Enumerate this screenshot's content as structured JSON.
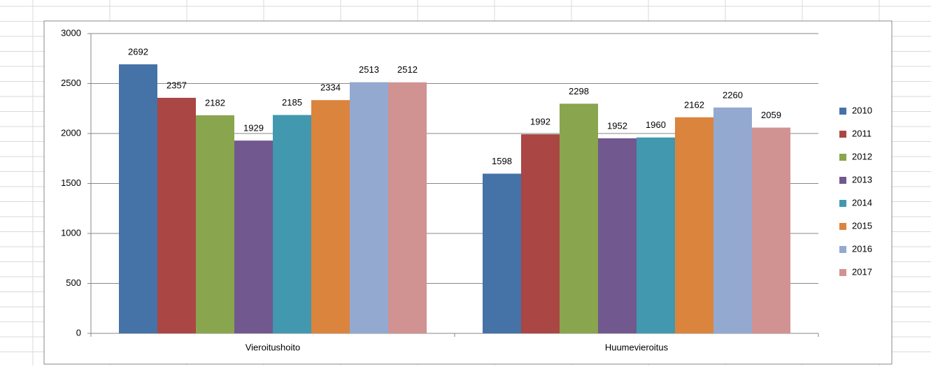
{
  "chart_data": {
    "type": "bar",
    "categories": [
      "Vieroitushoito",
      "Huumevieroitus"
    ],
    "series": [
      {
        "name": "2010",
        "color": "#4572a7",
        "values": [
          2692,
          1598
        ]
      },
      {
        "name": "2011",
        "color": "#aa4643",
        "values": [
          2357,
          1992
        ]
      },
      {
        "name": "2012",
        "color": "#89a54e",
        "values": [
          2182,
          2298
        ]
      },
      {
        "name": "2013",
        "color": "#71588f",
        "values": [
          1929,
          1952
        ]
      },
      {
        "name": "2014",
        "color": "#4198af",
        "values": [
          2185,
          1960
        ]
      },
      {
        "name": "2015",
        "color": "#db843d",
        "values": [
          2334,
          2162
        ]
      },
      {
        "name": "2016",
        "color": "#93a9cf",
        "values": [
          2513,
          2260
        ]
      },
      {
        "name": "2017",
        "color": "#d19392",
        "values": [
          2512,
          2059
        ]
      }
    ],
    "ylim": [
      0,
      3000
    ],
    "yticks": [
      0,
      500,
      1000,
      1500,
      2000,
      2500,
      3000
    ],
    "grid": true,
    "legend": "right"
  }
}
